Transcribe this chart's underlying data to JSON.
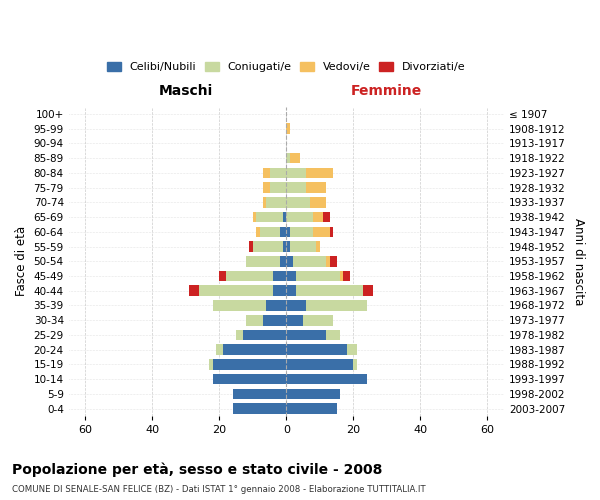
{
  "age_groups": [
    "0-4",
    "5-9",
    "10-14",
    "15-19",
    "20-24",
    "25-29",
    "30-34",
    "35-39",
    "40-44",
    "45-49",
    "50-54",
    "55-59",
    "60-64",
    "65-69",
    "70-74",
    "75-79",
    "80-84",
    "85-89",
    "90-94",
    "95-99",
    "100+"
  ],
  "birth_years": [
    "2003-2007",
    "1998-2002",
    "1993-1997",
    "1988-1992",
    "1983-1987",
    "1978-1982",
    "1973-1977",
    "1968-1972",
    "1963-1967",
    "1958-1962",
    "1953-1957",
    "1948-1952",
    "1943-1947",
    "1938-1942",
    "1933-1937",
    "1928-1932",
    "1923-1927",
    "1918-1922",
    "1913-1917",
    "1908-1912",
    "≤ 1907"
  ],
  "colors": {
    "celibi": "#3a6fa8",
    "coniugati": "#c8d9a0",
    "vedovi": "#f5c060",
    "divorziati": "#cc2222"
  },
  "maschi": {
    "celibi": [
      16,
      16,
      22,
      22,
      19,
      13,
      7,
      6,
      4,
      4,
      2,
      1,
      2,
      1,
      0,
      0,
      0,
      0,
      0,
      0,
      0
    ],
    "coniugati": [
      0,
      0,
      0,
      1,
      2,
      2,
      5,
      16,
      22,
      14,
      10,
      9,
      6,
      8,
      6,
      5,
      5,
      0,
      0,
      0,
      0
    ],
    "vedovi": [
      0,
      0,
      0,
      0,
      0,
      0,
      0,
      0,
      0,
      0,
      0,
      0,
      1,
      1,
      1,
      2,
      2,
      0,
      0,
      0,
      0
    ],
    "divorziati": [
      0,
      0,
      0,
      0,
      0,
      0,
      0,
      0,
      3,
      2,
      0,
      1,
      0,
      0,
      0,
      0,
      0,
      0,
      0,
      0,
      0
    ]
  },
  "femmine": {
    "nubili": [
      15,
      16,
      24,
      20,
      18,
      12,
      5,
      6,
      3,
      3,
      2,
      1,
      1,
      0,
      0,
      0,
      0,
      0,
      0,
      0,
      0
    ],
    "coniugate": [
      0,
      0,
      0,
      1,
      3,
      4,
      9,
      18,
      20,
      13,
      10,
      8,
      7,
      8,
      7,
      6,
      6,
      1,
      0,
      0,
      0
    ],
    "vedove": [
      0,
      0,
      0,
      0,
      0,
      0,
      0,
      0,
      0,
      1,
      1,
      1,
      5,
      3,
      5,
      6,
      8,
      3,
      0,
      1,
      0
    ],
    "divorziate": [
      0,
      0,
      0,
      0,
      0,
      0,
      0,
      0,
      3,
      2,
      2,
      0,
      1,
      2,
      0,
      0,
      0,
      0,
      0,
      0,
      0
    ]
  },
  "xlim": 65,
  "title": "Popolazione per età, sesso e stato civile - 2008",
  "subtitle": "COMUNE DI SENALE-SAN FELICE (BZ) - Dati ISTAT 1° gennaio 2008 - Elaborazione TUTTITALIA.IT",
  "xlabel_left": "Maschi",
  "xlabel_right": "Femmine",
  "ylabel_left": "Fasce di età",
  "ylabel_right": "Anni di nascita",
  "legend_labels": [
    "Celibi/Nubili",
    "Coniugati/e",
    "Vedovi/e",
    "Divorziati/e"
  ]
}
